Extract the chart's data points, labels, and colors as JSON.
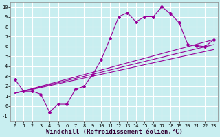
{
  "xlabel": "Windchill (Refroidissement éolien,°C)",
  "bg_color": "#c8eef0",
  "grid_color": "#ffffff",
  "line_color": "#990099",
  "xlim": [
    -0.5,
    23.5
  ],
  "ylim": [
    -1.5,
    10.5
  ],
  "xticks": [
    0,
    1,
    2,
    3,
    4,
    5,
    6,
    7,
    8,
    9,
    10,
    11,
    12,
    13,
    14,
    15,
    16,
    17,
    18,
    19,
    20,
    21,
    22,
    23
  ],
  "yticks": [
    -1,
    0,
    1,
    2,
    3,
    4,
    5,
    6,
    7,
    8,
    9,
    10
  ],
  "series1_x": [
    0,
    1,
    2,
    3,
    4,
    5,
    6,
    7,
    8,
    9,
    10,
    11,
    12,
    13,
    14,
    15,
    16,
    17,
    18,
    19,
    20,
    21,
    22,
    23
  ],
  "series1_y": [
    2.7,
    1.5,
    1.5,
    1.2,
    -0.6,
    0.2,
    0.2,
    1.7,
    2.0,
    3.2,
    4.7,
    6.8,
    9.0,
    9.4,
    8.5,
    9.0,
    9.0,
    10.0,
    9.3,
    8.4,
    6.2,
    6.1,
    6.0,
    6.7
  ],
  "series2_x": [
    0,
    23
  ],
  "series2_y": [
    1.3,
    6.7
  ],
  "series3_x": [
    0,
    23
  ],
  "series3_y": [
    1.3,
    5.7
  ],
  "series4_x": [
    0,
    23
  ],
  "series4_y": [
    1.3,
    6.2
  ],
  "tick_fontsize": 5,
  "xlabel_fontsize": 6.5
}
